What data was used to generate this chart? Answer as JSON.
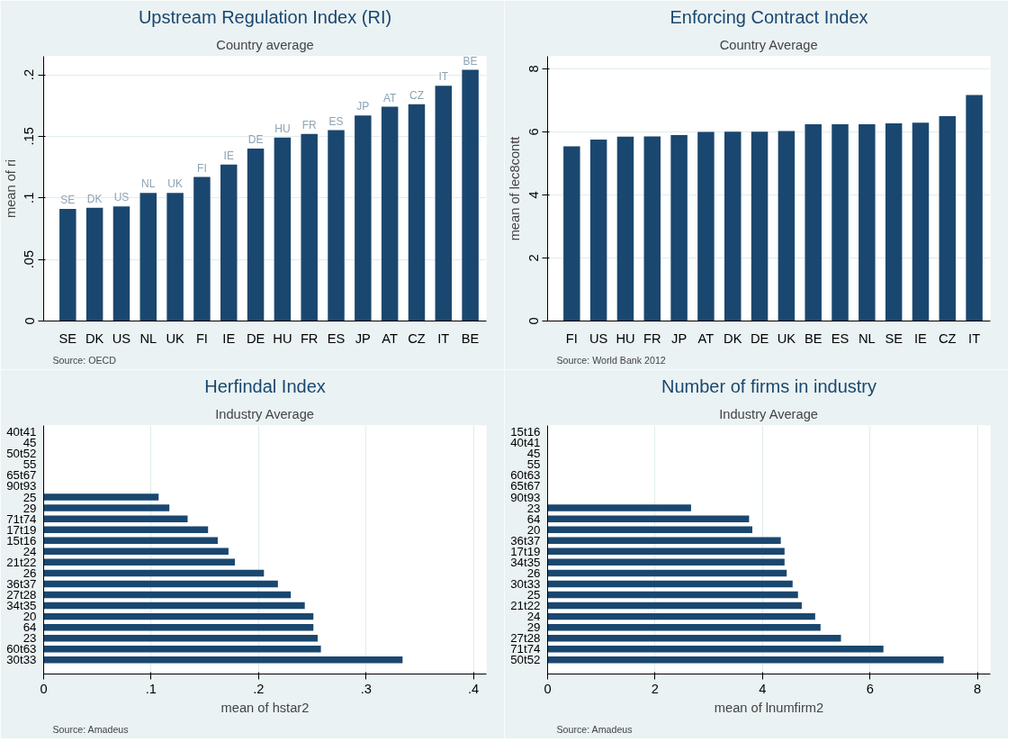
{
  "chart_data": [
    {
      "type": "bar",
      "title": "Upstream Regulation Index (RI)",
      "subtitle": "Country average",
      "ylabel": "mean of ri",
      "color": "#1a476f",
      "grid": "y",
      "categories": [
        "SE",
        "DK",
        "US",
        "NL",
        "UK",
        "FI",
        "IE",
        "DE",
        "HU",
        "FR",
        "ES",
        "JP",
        "AT",
        "CZ",
        "IT",
        "BE"
      ],
      "values": [
        0.091,
        0.092,
        0.093,
        0.104,
        0.104,
        0.117,
        0.127,
        0.14,
        0.149,
        0.152,
        0.155,
        0.167,
        0.174,
        0.176,
        0.191,
        0.204
      ],
      "ylim": [
        0,
        0.215
      ],
      "yticks": [
        0,
        {
          "value": 0.05,
          "label": ".05"
        },
        {
          "value": 0.1,
          "label": ".1"
        },
        {
          "value": 0.15,
          "label": ".15"
        },
        {
          "value": 0.2,
          "label": ".2"
        }
      ],
      "annotations": [
        "Source: OECD",
        {
          "text": "SE",
          "x": "SE",
          "y": 0.091
        },
        {
          "text": "DK",
          "x": "DK",
          "y": 0.092
        },
        {
          "text": "US",
          "x": "US",
          "y": 0.093
        },
        {
          "text": "NL",
          "x": "NL",
          "y": 0.104
        },
        {
          "text": "UK",
          "x": "UK",
          "y": 0.104
        },
        {
          "text": "FI",
          "x": "FI",
          "y": 0.117
        },
        {
          "text": "IE",
          "x": "IE",
          "y": 0.127
        },
        {
          "text": "DE",
          "x": "DE",
          "y": 0.14
        },
        {
          "text": "HU",
          "x": "HU",
          "y": 0.149
        },
        {
          "text": "FR",
          "x": "FR",
          "y": 0.152
        },
        {
          "text": "ES",
          "x": "ES",
          "y": 0.155
        },
        {
          "text": "JP",
          "x": "JP",
          "y": 0.167
        },
        {
          "text": "AT",
          "x": "AT",
          "y": 0.174
        },
        {
          "text": "CZ",
          "x": "CZ",
          "y": 0.176
        },
        {
          "text": "IT",
          "x": "IT",
          "y": 0.191
        },
        {
          "text": "BE",
          "x": "BE",
          "y": 0.204
        }
      ]
    },
    {
      "type": "bar",
      "title": "Enforcing Contract Index",
      "subtitle": "Country Average",
      "ylabel": "mean of lec8contt",
      "color": "#1a476f",
      "grid": "y",
      "categories": [
        "FI",
        "US",
        "HU",
        "FR",
        "JP",
        "AT",
        "DK",
        "DE",
        "UK",
        "BE",
        "ES",
        "NL",
        "SE",
        "IE",
        "CZ",
        "IT"
      ],
      "values": [
        5.54,
        5.76,
        5.85,
        5.86,
        5.9,
        6.0,
        6.01,
        6.01,
        6.03,
        6.24,
        6.24,
        6.24,
        6.27,
        6.29,
        6.5,
        7.17
      ],
      "ylim": [
        0,
        8.4
      ],
      "yticks": [
        0,
        2,
        4,
        6,
        8
      ],
      "annotations": [
        "Source: World Bank 2012"
      ]
    },
    {
      "type": "bar",
      "orientation": "horizontal",
      "title": "Herfindal Index",
      "subtitle": "Industry Average",
      "xlabel": "mean of hstar2",
      "color": "#1a476f",
      "grid": "x",
      "categories": [
        "40t41",
        "45",
        "50t52",
        "55",
        "65t67",
        "90t93",
        "25",
        "29",
        "71t74",
        "17t19",
        "15t16",
        "24",
        "21t22",
        "26",
        "36t37",
        "27t28",
        "34t35",
        "20",
        "64",
        "23",
        "60t63",
        "30t33"
      ],
      "values": [
        null,
        null,
        null,
        null,
        null,
        null,
        0.107,
        0.117,
        0.134,
        0.153,
        0.162,
        0.172,
        0.178,
        0.205,
        0.218,
        0.23,
        0.243,
        0.251,
        0.251,
        0.255,
        0.258,
        0.334
      ],
      "xlim": [
        0,
        0.412
      ],
      "xticks": [
        0,
        {
          "value": 0.1,
          "label": ".1"
        },
        {
          "value": 0.2,
          "label": ".2"
        },
        {
          "value": 0.3,
          "label": ".3"
        },
        {
          "value": 0.4,
          "label": ".4"
        }
      ],
      "annotations": [
        "Source: Amadeus"
      ]
    },
    {
      "type": "bar",
      "orientation": "horizontal",
      "title": "Number of firms in industry",
      "subtitle": "Industry Average",
      "xlabel": "mean of lnumfirm2",
      "color": "#1a476f",
      "grid": "x",
      "categories": [
        "15t16",
        "40t41",
        "45",
        "55",
        "60t63",
        "65t67",
        "90t93",
        "23",
        "64",
        "20",
        "36t37",
        "17t19",
        "34t35",
        "26",
        "30t33",
        "25",
        "21t22",
        "24",
        "29",
        "27t28",
        "71t74",
        "50t52"
      ],
      "values": [
        null,
        null,
        null,
        null,
        null,
        null,
        null,
        2.67,
        3.75,
        3.81,
        4.34,
        4.41,
        4.41,
        4.45,
        4.56,
        4.66,
        4.73,
        4.98,
        5.08,
        5.46,
        6.25,
        7.37
      ],
      "xlim": [
        0,
        8.24
      ],
      "xticks": [
        0,
        2,
        4,
        6,
        8
      ],
      "annotations": [
        "Source: Amadeus"
      ]
    }
  ]
}
